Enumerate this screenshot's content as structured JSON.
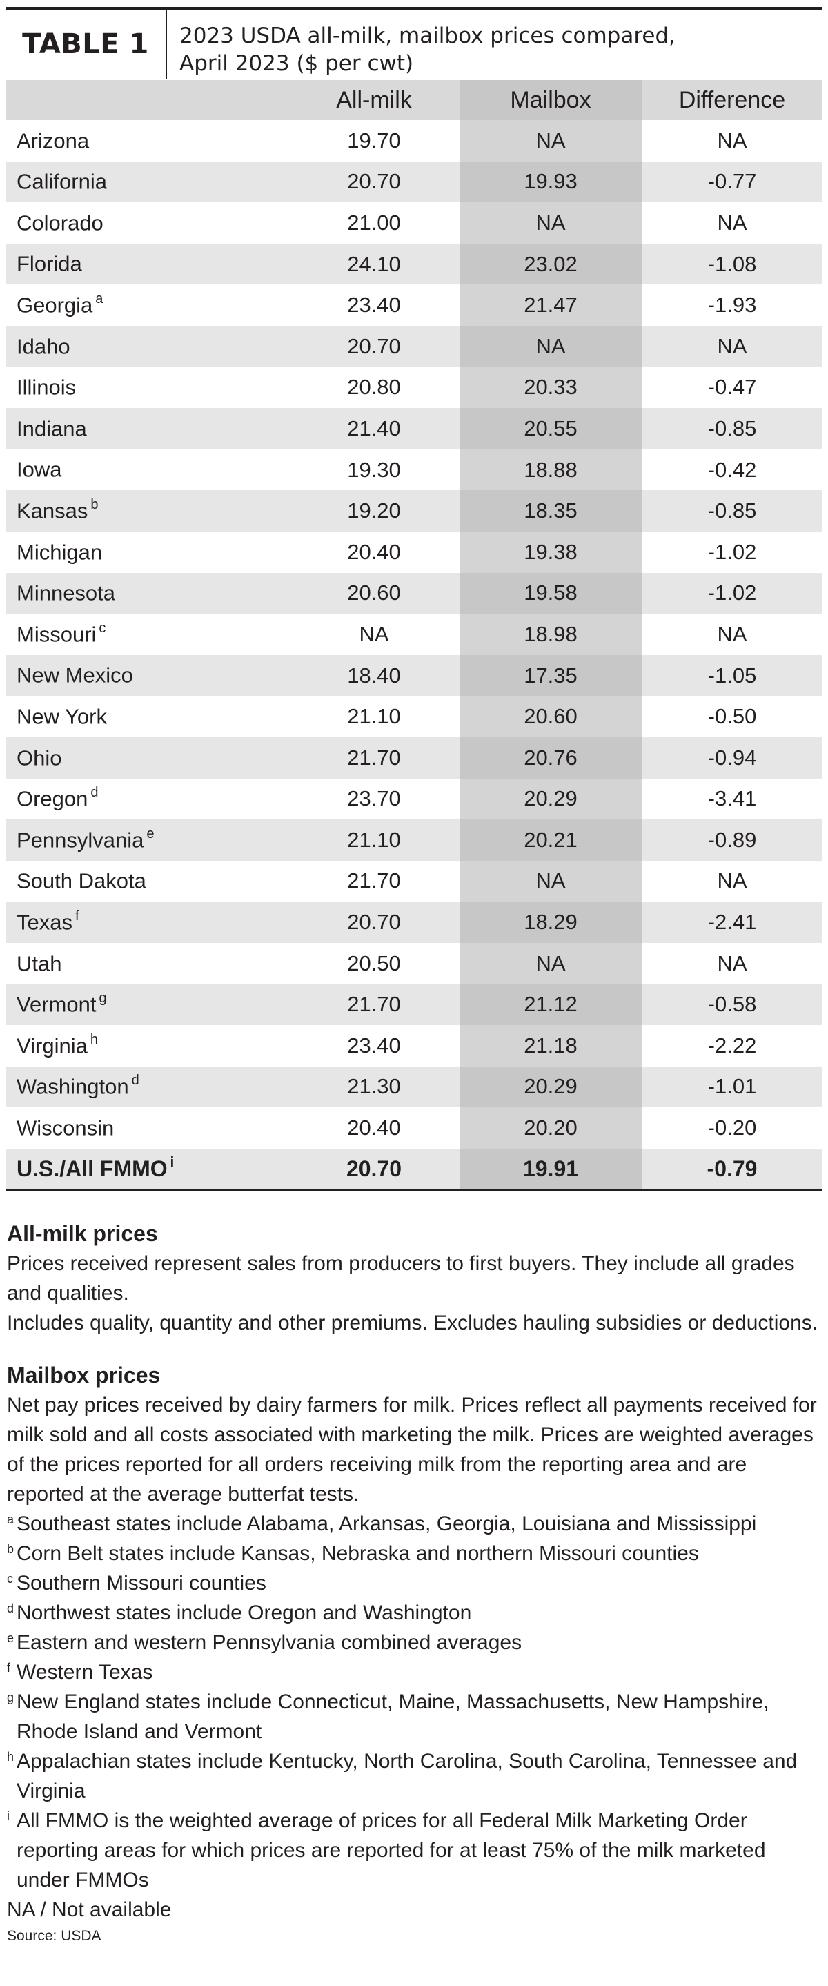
{
  "header": {
    "label": "TABLE 1",
    "title_line1": "2023 USDA all-milk, mailbox prices compared,",
    "title_line2": "April 2023 ($ per cwt)"
  },
  "table": {
    "columns": [
      "",
      "All-milk",
      "Mailbox",
      "Difference"
    ],
    "rows": [
      {
        "state": "Arizona",
        "sup": "",
        "all_milk": "19.70",
        "mailbox": "NA",
        "difference": "NA"
      },
      {
        "state": "California",
        "sup": "",
        "all_milk": "20.70",
        "mailbox": "19.93",
        "difference": "-0.77"
      },
      {
        "state": "Colorado",
        "sup": "",
        "all_milk": "21.00",
        "mailbox": "NA",
        "difference": "NA"
      },
      {
        "state": "Florida",
        "sup": "",
        "all_milk": "24.10",
        "mailbox": "23.02",
        "difference": "-1.08"
      },
      {
        "state": "Georgia",
        "sup": "a",
        "all_milk": "23.40",
        "mailbox": "21.47",
        "difference": "-1.93"
      },
      {
        "state": "Idaho",
        "sup": "",
        "all_milk": "20.70",
        "mailbox": "NA",
        "difference": "NA"
      },
      {
        "state": "Illinois",
        "sup": "",
        "all_milk": "20.80",
        "mailbox": "20.33",
        "difference": "-0.47"
      },
      {
        "state": "Indiana",
        "sup": "",
        "all_milk": "21.40",
        "mailbox": "20.55",
        "difference": "-0.85"
      },
      {
        "state": "Iowa",
        "sup": "",
        "all_milk": "19.30",
        "mailbox": "18.88",
        "difference": "-0.42"
      },
      {
        "state": "Kansas",
        "sup": "b",
        "all_milk": "19.20",
        "mailbox": "18.35",
        "difference": "-0.85"
      },
      {
        "state": "Michigan",
        "sup": "",
        "all_milk": "20.40",
        "mailbox": "19.38",
        "difference": "-1.02"
      },
      {
        "state": "Minnesota",
        "sup": "",
        "all_milk": "20.60",
        "mailbox": "19.58",
        "difference": "-1.02"
      },
      {
        "state": "Missouri",
        "sup": "c",
        "all_milk": "NA",
        "mailbox": "18.98",
        "difference": "NA"
      },
      {
        "state": "New Mexico",
        "sup": "",
        "all_milk": "18.40",
        "mailbox": "17.35",
        "difference": "-1.05"
      },
      {
        "state": "New York",
        "sup": "",
        "all_milk": "21.10",
        "mailbox": "20.60",
        "difference": "-0.50"
      },
      {
        "state": "Ohio",
        "sup": "",
        "all_milk": "21.70",
        "mailbox": "20.76",
        "difference": "-0.94"
      },
      {
        "state": "Oregon",
        "sup": "d",
        "all_milk": "23.70",
        "mailbox": "20.29",
        "difference": "-3.41"
      },
      {
        "state": "Pennsylvania",
        "sup": "e",
        "all_milk": "21.10",
        "mailbox": "20.21",
        "difference": "-0.89"
      },
      {
        "state": "South Dakota",
        "sup": "",
        "all_milk": "21.70",
        "mailbox": "NA",
        "difference": "NA"
      },
      {
        "state": "Texas",
        "sup": "f",
        "all_milk": "20.70",
        "mailbox": "18.29",
        "difference": "-2.41"
      },
      {
        "state": "Utah",
        "sup": "",
        "all_milk": "20.50",
        "mailbox": "NA",
        "difference": "NA"
      },
      {
        "state": "Vermont",
        "sup": "g",
        "all_milk": "21.70",
        "mailbox": "21.12",
        "difference": "-0.58"
      },
      {
        "state": "Virginia",
        "sup": "h",
        "all_milk": "23.40",
        "mailbox": "21.18",
        "difference": "-2.22"
      },
      {
        "state": "Washington",
        "sup": "d",
        "all_milk": "21.30",
        "mailbox": "20.29",
        "difference": "-1.01"
      },
      {
        "state": "Wisconsin",
        "sup": "",
        "all_milk": "20.40",
        "mailbox": "20.20",
        "difference": "-0.20"
      }
    ],
    "total": {
      "state": "U.S./All FMMO",
      "sup": "i",
      "all_milk": "20.70",
      "mailbox": "19.91",
      "difference": "-0.79"
    }
  },
  "notes": {
    "allmilk_heading": "All-milk prices",
    "allmilk_p1": "Prices received represent sales from producers to first buyers. They include all grades and qualities.",
    "allmilk_p2": "Includes quality, quantity and other premiums. Excludes hauling subsidies or deductions.",
    "mailbox_heading": "Mailbox prices",
    "mailbox_p1": "Net pay prices received by dairy farmers for milk. Prices reflect all payments received for milk sold and all costs associated with marketing the milk. Prices are weighted averages of the prices reported for all orders receiving milk from the reporting area and are reported at the average butterfat tests.",
    "footnotes": [
      {
        "mark": "a",
        "text": "Southeast states include Alabama, Arkansas, Georgia, Louisiana and Mississippi"
      },
      {
        "mark": "b",
        "text": "Corn Belt states include Kansas, Nebraska and northern Missouri counties"
      },
      {
        "mark": "c",
        "text": "Southern Missouri counties"
      },
      {
        "mark": "d",
        "text": "Northwest states include Oregon and Washington"
      },
      {
        "mark": "e",
        "text": "Eastern and western Pennsylvania combined averages"
      },
      {
        "mark": "f",
        "text": "Western Texas"
      },
      {
        "mark": "g",
        "text": "New England states include Connecticut, Maine, Massachusetts, New Hampshire, Rhode Island and Vermont"
      },
      {
        "mark": "h",
        "text": "Appalachian states include Kentucky, North Carolina, South Carolina, Tennessee and Virginia"
      },
      {
        "mark": "i",
        "text": "All FMMO is the weighted average of prices for all Federal Milk Marketing Order reporting areas for which prices are reported for at least 75% of the milk marketed under FMMOs"
      }
    ],
    "na_note": "NA / Not available",
    "source": "Source: USDA"
  }
}
